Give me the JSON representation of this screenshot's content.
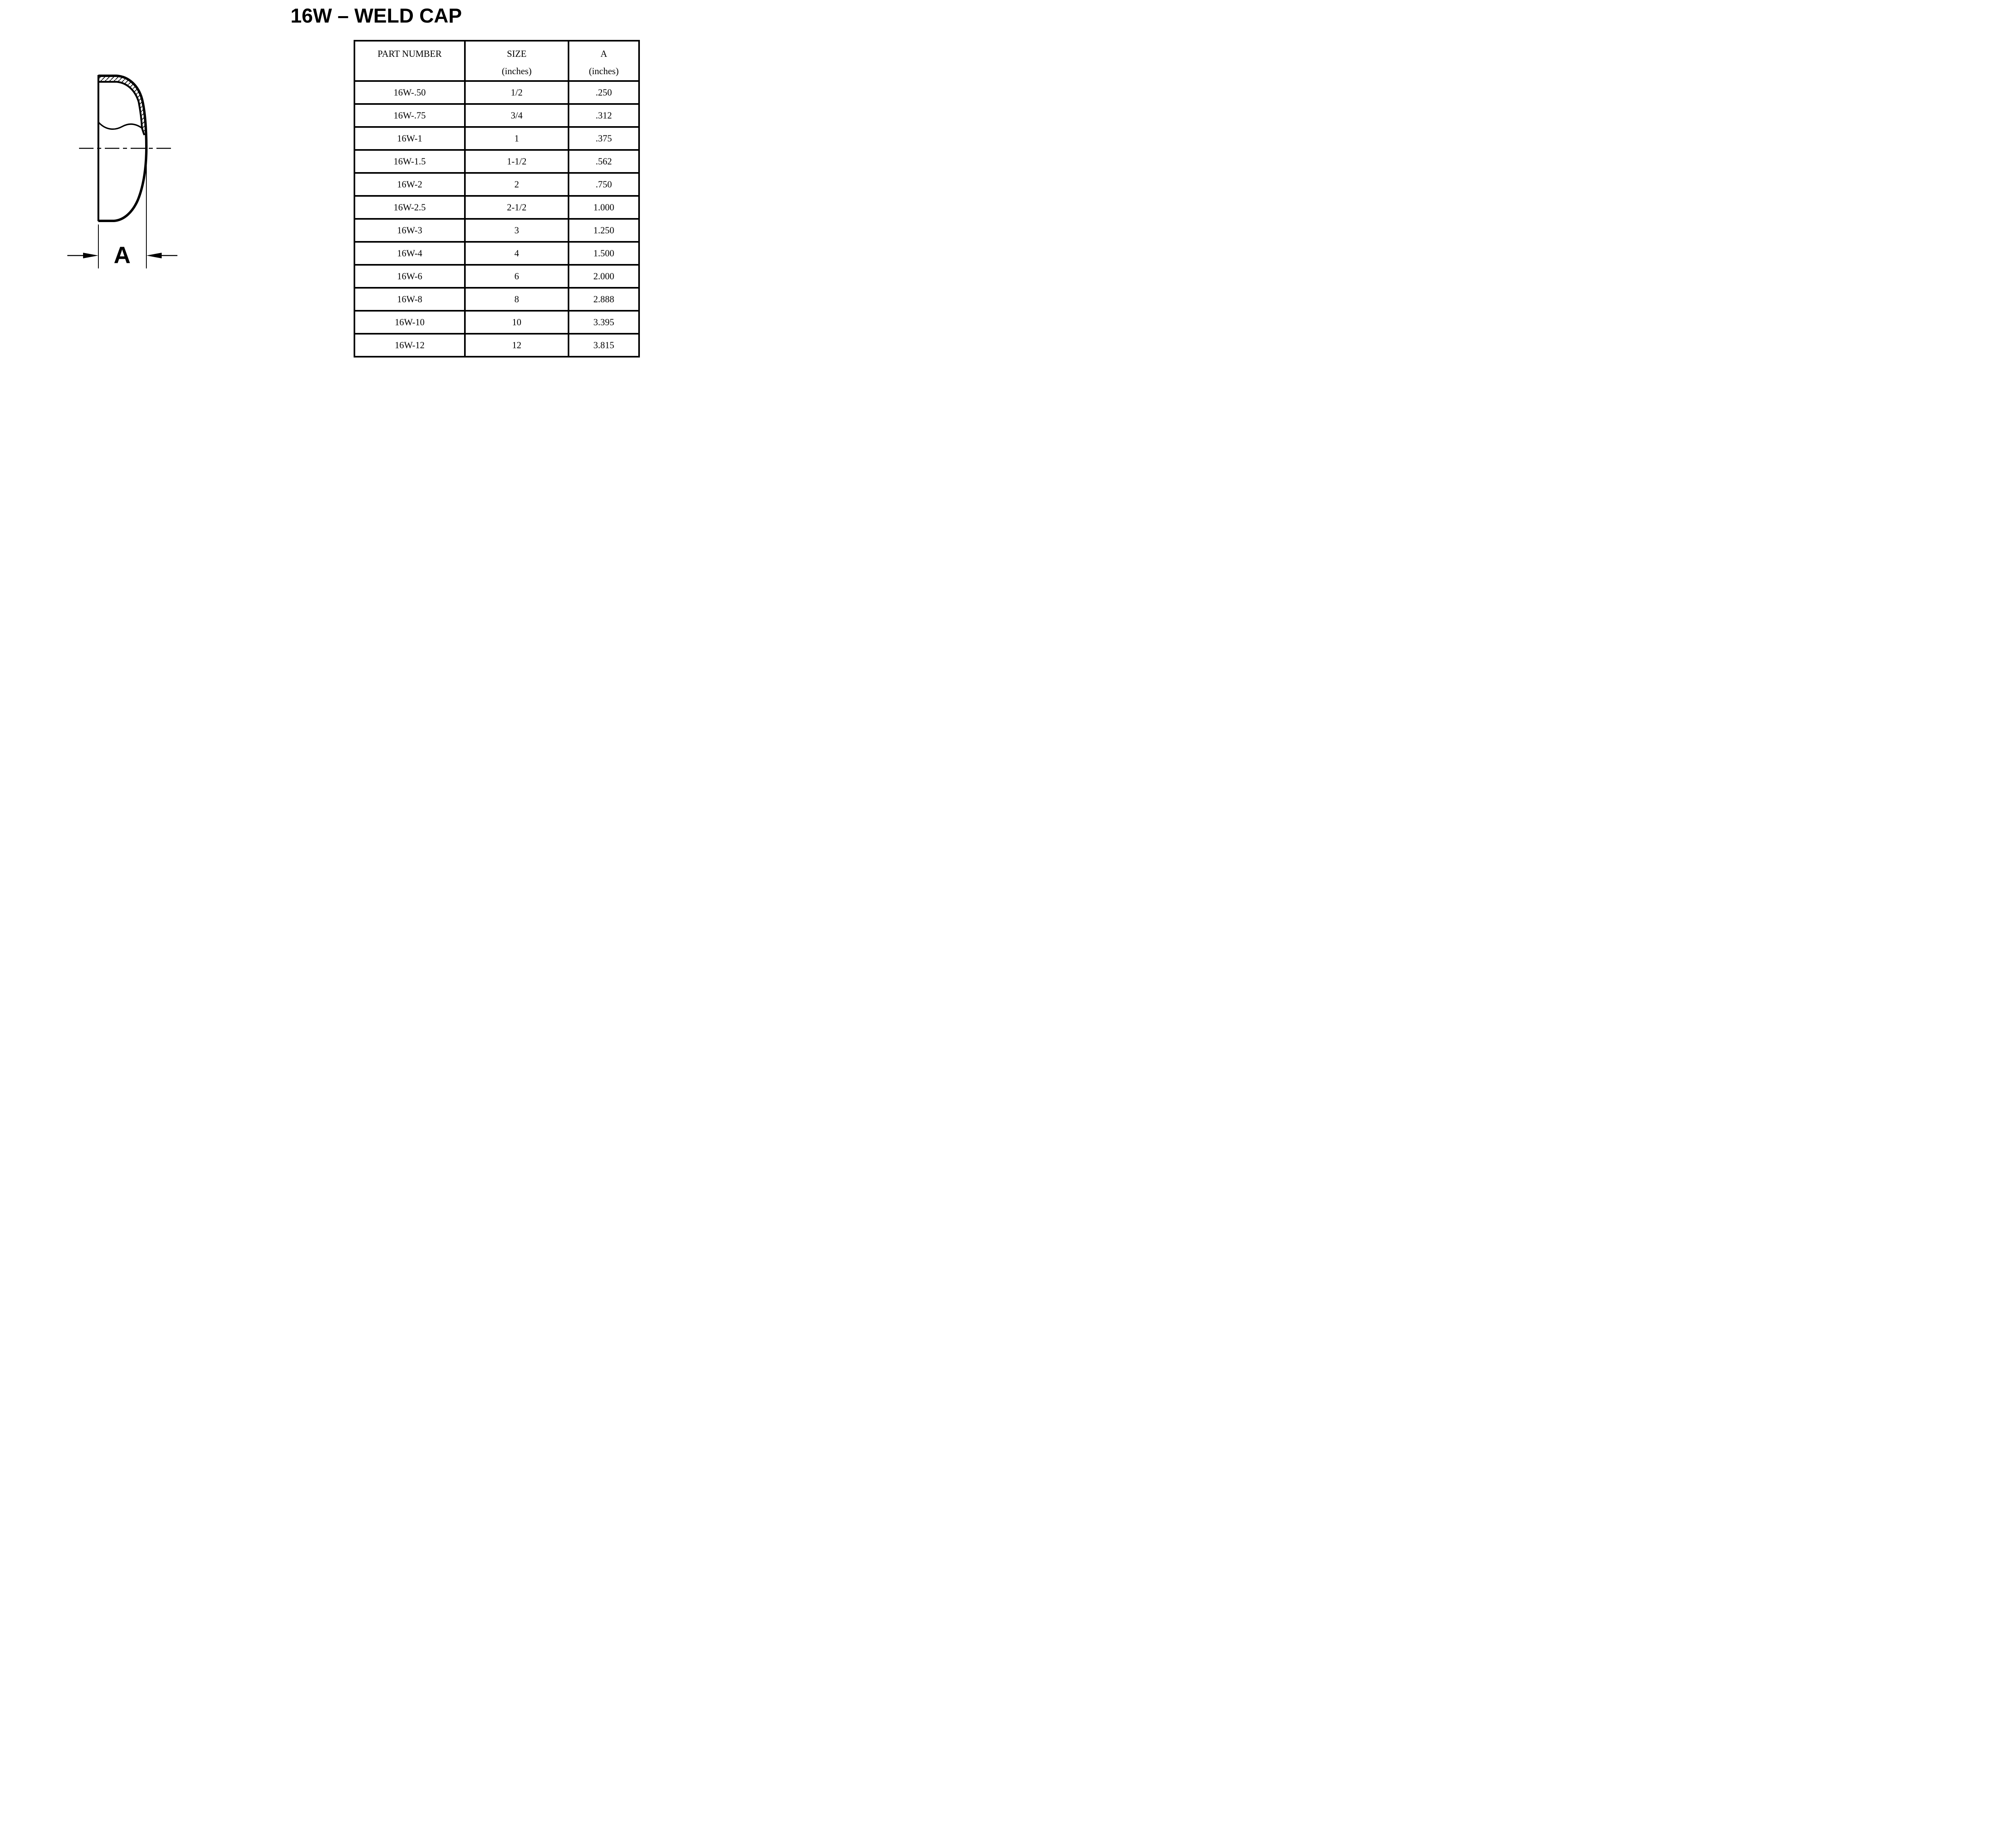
{
  "title": "16W – WELD CAP",
  "colors": {
    "background": "#ffffff",
    "line_color": "#000000",
    "table_border": "#000000",
    "stripe_row_fill": "#acbcd6",
    "text_color": "#000000"
  },
  "diagram": {
    "description": "weld cap cross-section side view with hatched wall, break line, centerline and width dimension",
    "dimension_label": "A"
  },
  "table": {
    "columns": [
      {
        "line1": "PART NUMBER",
        "line2": ""
      },
      {
        "line1": "SIZE",
        "line2": "(inches)"
      },
      {
        "line1": "A",
        "line2": "(inches)"
      }
    ],
    "rows": [
      [
        "16W-.50",
        "1/2",
        ".250"
      ],
      [
        "16W-.75",
        "3/4",
        ".312"
      ],
      [
        "16W-1",
        "1",
        ".375"
      ],
      [
        "16W-1.5",
        "1-1/2",
        ".562"
      ],
      [
        "16W-2",
        "2",
        ".750"
      ],
      [
        "16W-2.5",
        "2-1/2",
        "1.000"
      ],
      [
        "16W-3",
        "3",
        "1.250"
      ],
      [
        "16W-4",
        "4",
        "1.500"
      ],
      [
        "16W-6",
        "6",
        "2.000"
      ],
      [
        "16W-8",
        "8",
        "2.888"
      ],
      [
        "16W-10",
        "10",
        "3.395"
      ],
      [
        "16W-12",
        "12",
        "3.815"
      ]
    ]
  },
  "chart_data": {
    "type": "table",
    "title": "16W – WELD CAP",
    "columns": [
      "PART NUMBER",
      "SIZE (inches)",
      "A (inches)"
    ],
    "rows": [
      [
        "16W-.50",
        "1/2",
        ".250"
      ],
      [
        "16W-.75",
        "3/4",
        ".312"
      ],
      [
        "16W-1",
        "1",
        ".375"
      ],
      [
        "16W-1.5",
        "1-1/2",
        ".562"
      ],
      [
        "16W-2",
        "2",
        ".750"
      ],
      [
        "16W-2.5",
        "2-1/2",
        "1.000"
      ],
      [
        "16W-3",
        "3",
        "1.250"
      ],
      [
        "16W-4",
        "4",
        "1.500"
      ],
      [
        "16W-6",
        "6",
        "2.000"
      ],
      [
        "16W-8",
        "8",
        "2.888"
      ],
      [
        "16W-10",
        "10",
        "3.395"
      ],
      [
        "16W-12",
        "12",
        "3.815"
      ]
    ]
  }
}
